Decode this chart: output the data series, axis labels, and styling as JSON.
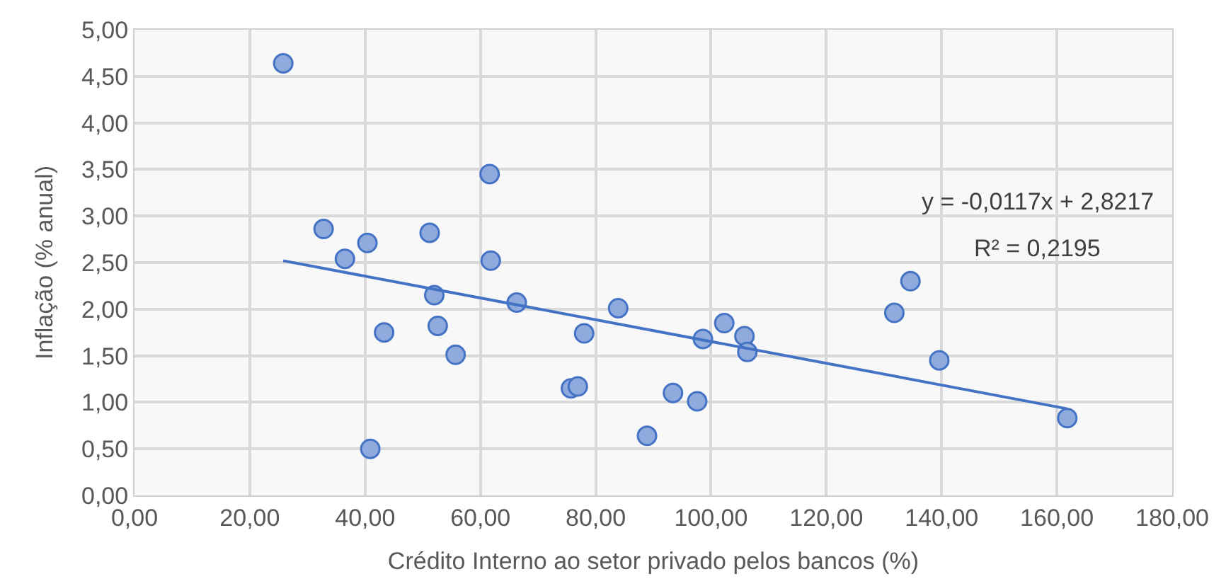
{
  "chart_data": {
    "type": "scatter",
    "xlabel": "Crédito Interno ao setor privado pelos bancos (%)",
    "ylabel": "Inflação (% anual)",
    "xlim": [
      0,
      180
    ],
    "xticks": [
      {
        "value": 0,
        "label": "0,00"
      },
      {
        "value": 20,
        "label": "20,00"
      },
      {
        "value": 40,
        "label": "40,00"
      },
      {
        "value": 60,
        "label": "60,00"
      },
      {
        "value": 80,
        "label": "80,00"
      },
      {
        "value": 100,
        "label": "100,00"
      },
      {
        "value": 120,
        "label": "120,00"
      },
      {
        "value": 140,
        "label": "140,00"
      },
      {
        "value": 160,
        "label": "160,00"
      },
      {
        "value": 180,
        "label": "180,00"
      }
    ],
    "ylim": [
      0,
      5
    ],
    "yticks": [
      {
        "value": 0,
        "label": "0,00"
      },
      {
        "value": 0.5,
        "label": "0,50"
      },
      {
        "value": 1,
        "label": "1,00"
      },
      {
        "value": 1.5,
        "label": "1,50"
      },
      {
        "value": 2,
        "label": "2,00"
      },
      {
        "value": 2.5,
        "label": "2,50"
      },
      {
        "value": 3,
        "label": "3,00"
      },
      {
        "value": 3.5,
        "label": "3,50"
      },
      {
        "value": 4,
        "label": "4,00"
      },
      {
        "value": 4.5,
        "label": "4,50"
      },
      {
        "value": 5,
        "label": "5,00"
      }
    ],
    "grid": true,
    "series": [
      {
        "marker": "circle",
        "color": "#8faadc",
        "x": [
          25.8,
          32.8,
          36.5,
          40.4,
          43.3,
          40.9,
          51.2,
          52.0,
          52.6,
          55.7,
          61.6,
          61.8,
          66.3,
          75.7,
          76.9,
          78.0,
          83.9,
          88.9,
          93.4,
          97.6,
          98.6,
          102.3,
          105.8,
          106.3,
          131.8,
          134.6,
          139.6,
          161.8
        ],
        "values": [
          4.64,
          2.86,
          2.54,
          2.71,
          1.75,
          0.5,
          2.82,
          2.15,
          1.82,
          1.51,
          3.45,
          2.52,
          2.07,
          1.15,
          1.17,
          1.74,
          2.01,
          0.64,
          1.1,
          1.01,
          1.68,
          1.85,
          1.71,
          1.54,
          1.96,
          2.3,
          1.45,
          0.83
        ]
      },
      {
        "type": "line",
        "marker": "none",
        "color": "#4472c4",
        "x": [
          25.8,
          161.8
        ],
        "values": [
          2.52,
          0.93
        ]
      }
    ],
    "annotations": [
      "y = -0,0117x + 2,8217",
      "R² = 0,2195"
    ]
  }
}
